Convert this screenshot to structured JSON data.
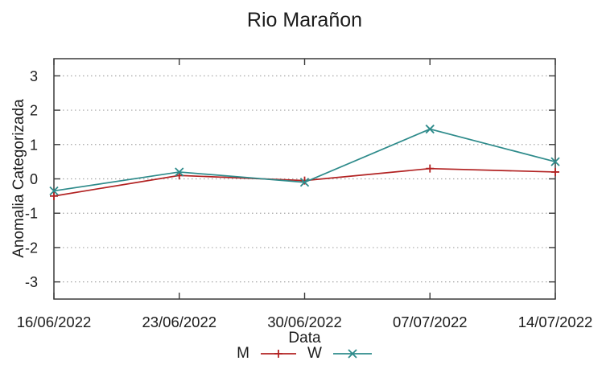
{
  "chart_data": {
    "type": "line",
    "title": "Rio Marañon",
    "xlabel": "Data",
    "ylabel": "Anomalia Categorizada",
    "categories": [
      "16/06/2022",
      "23/06/2022",
      "30/06/2022",
      "07/07/2022",
      "14/07/2022"
    ],
    "series": [
      {
        "name": "M",
        "color": "#b22222",
        "marker": "plus",
        "values": [
          -0.5,
          0.1,
          -0.05,
          0.3,
          0.2
        ]
      },
      {
        "name": "W",
        "color": "#2e8b8b",
        "marker": "cross",
        "values": [
          -0.35,
          0.2,
          -0.1,
          1.45,
          0.5
        ]
      }
    ],
    "ylim": [
      -3.5,
      3.5
    ],
    "yticks": [
      3,
      2,
      1,
      0,
      -1,
      -2,
      -3
    ],
    "grid": true,
    "legend_position": "bottom-center"
  },
  "style": {
    "background": "#ffffff",
    "border_color": "#3a3a3a",
    "grid_color": "#a6a6a6",
    "text_color": "#1c1c1c",
    "tick_label_color": "#1c1c1c"
  }
}
